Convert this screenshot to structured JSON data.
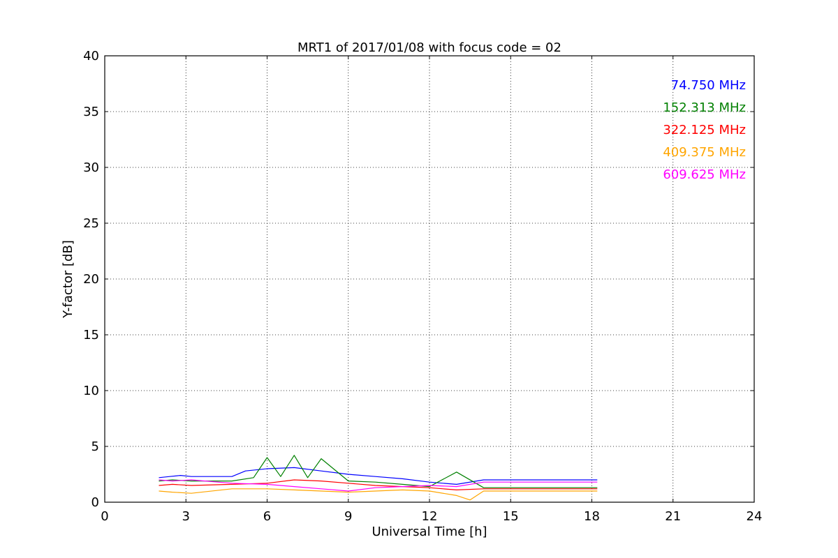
{
  "chart_data": {
    "type": "line",
    "title": "MRT1 of 2017/01/08 with focus code = 02",
    "xlabel": "Universal Time [h]",
    "ylabel": "Y-factor [dB]",
    "xlim": [
      0,
      24
    ],
    "ylim": [
      0,
      40
    ],
    "xticks": [
      0,
      3,
      6,
      9,
      12,
      15,
      18,
      21,
      24
    ],
    "yticks": [
      0,
      5,
      10,
      15,
      20,
      25,
      30,
      35,
      40
    ],
    "grid": true,
    "legend_position": "top-right",
    "series": [
      {
        "name": "74.750 MHz",
        "color": "#0000ff",
        "x": [
          2.0,
          2.4,
          2.8,
          3.2,
          4.7,
          5.2,
          6.0,
          7.0,
          8.0,
          9.0,
          10.0,
          11.0,
          12.0,
          13.0,
          14.0,
          18.2
        ],
        "y": [
          2.2,
          2.3,
          2.4,
          2.3,
          2.3,
          2.8,
          3.0,
          3.1,
          2.8,
          2.5,
          2.3,
          2.1,
          1.8,
          1.6,
          2.0,
          2.0
        ]
      },
      {
        "name": "152.313 MHz",
        "color": "#008000",
        "x": [
          2.0,
          2.5,
          3.2,
          4.7,
          5.5,
          6.0,
          6.5,
          7.0,
          7.5,
          8.0,
          9.0,
          10.0,
          11.0,
          12.0,
          13.0,
          14.0,
          18.2
        ],
        "y": [
          1.9,
          2.0,
          1.9,
          1.9,
          2.2,
          4.0,
          2.3,
          4.2,
          2.2,
          3.9,
          1.9,
          1.8,
          1.6,
          1.4,
          2.7,
          1.3,
          1.3
        ]
      },
      {
        "name": "322.125 MHz",
        "color": "#ff0000",
        "x": [
          2.0,
          2.5,
          3.2,
          4.7,
          6.0,
          7.0,
          8.0,
          9.0,
          10.0,
          11.0,
          12.0,
          13.0,
          14.0,
          18.2
        ],
        "y": [
          1.5,
          1.6,
          1.5,
          1.6,
          1.7,
          2.0,
          1.9,
          1.7,
          1.5,
          1.4,
          1.3,
          1.1,
          1.2,
          1.2
        ]
      },
      {
        "name": "409.375 MHz",
        "color": "#ffa500",
        "x": [
          2.0,
          2.5,
          3.2,
          4.7,
          6.0,
          7.0,
          8.0,
          9.0,
          10.0,
          11.0,
          12.0,
          13.0,
          13.5,
          14.0,
          18.2
        ],
        "y": [
          1.0,
          0.9,
          0.8,
          1.2,
          1.2,
          1.1,
          1.0,
          0.9,
          1.0,
          1.1,
          1.0,
          0.6,
          0.2,
          1.0,
          1.0
        ]
      },
      {
        "name": "609.625 MHz",
        "color": "#ff00ff",
        "x": [
          2.0,
          2.5,
          3.2,
          4.7,
          6.0,
          7.0,
          8.0,
          9.0,
          10.0,
          11.0,
          12.0,
          13.0,
          14.0,
          18.2
        ],
        "y": [
          2.0,
          1.9,
          2.0,
          1.7,
          1.6,
          1.4,
          1.2,
          1.0,
          1.3,
          1.4,
          1.5,
          1.4,
          1.8,
          1.8
        ]
      }
    ]
  }
}
